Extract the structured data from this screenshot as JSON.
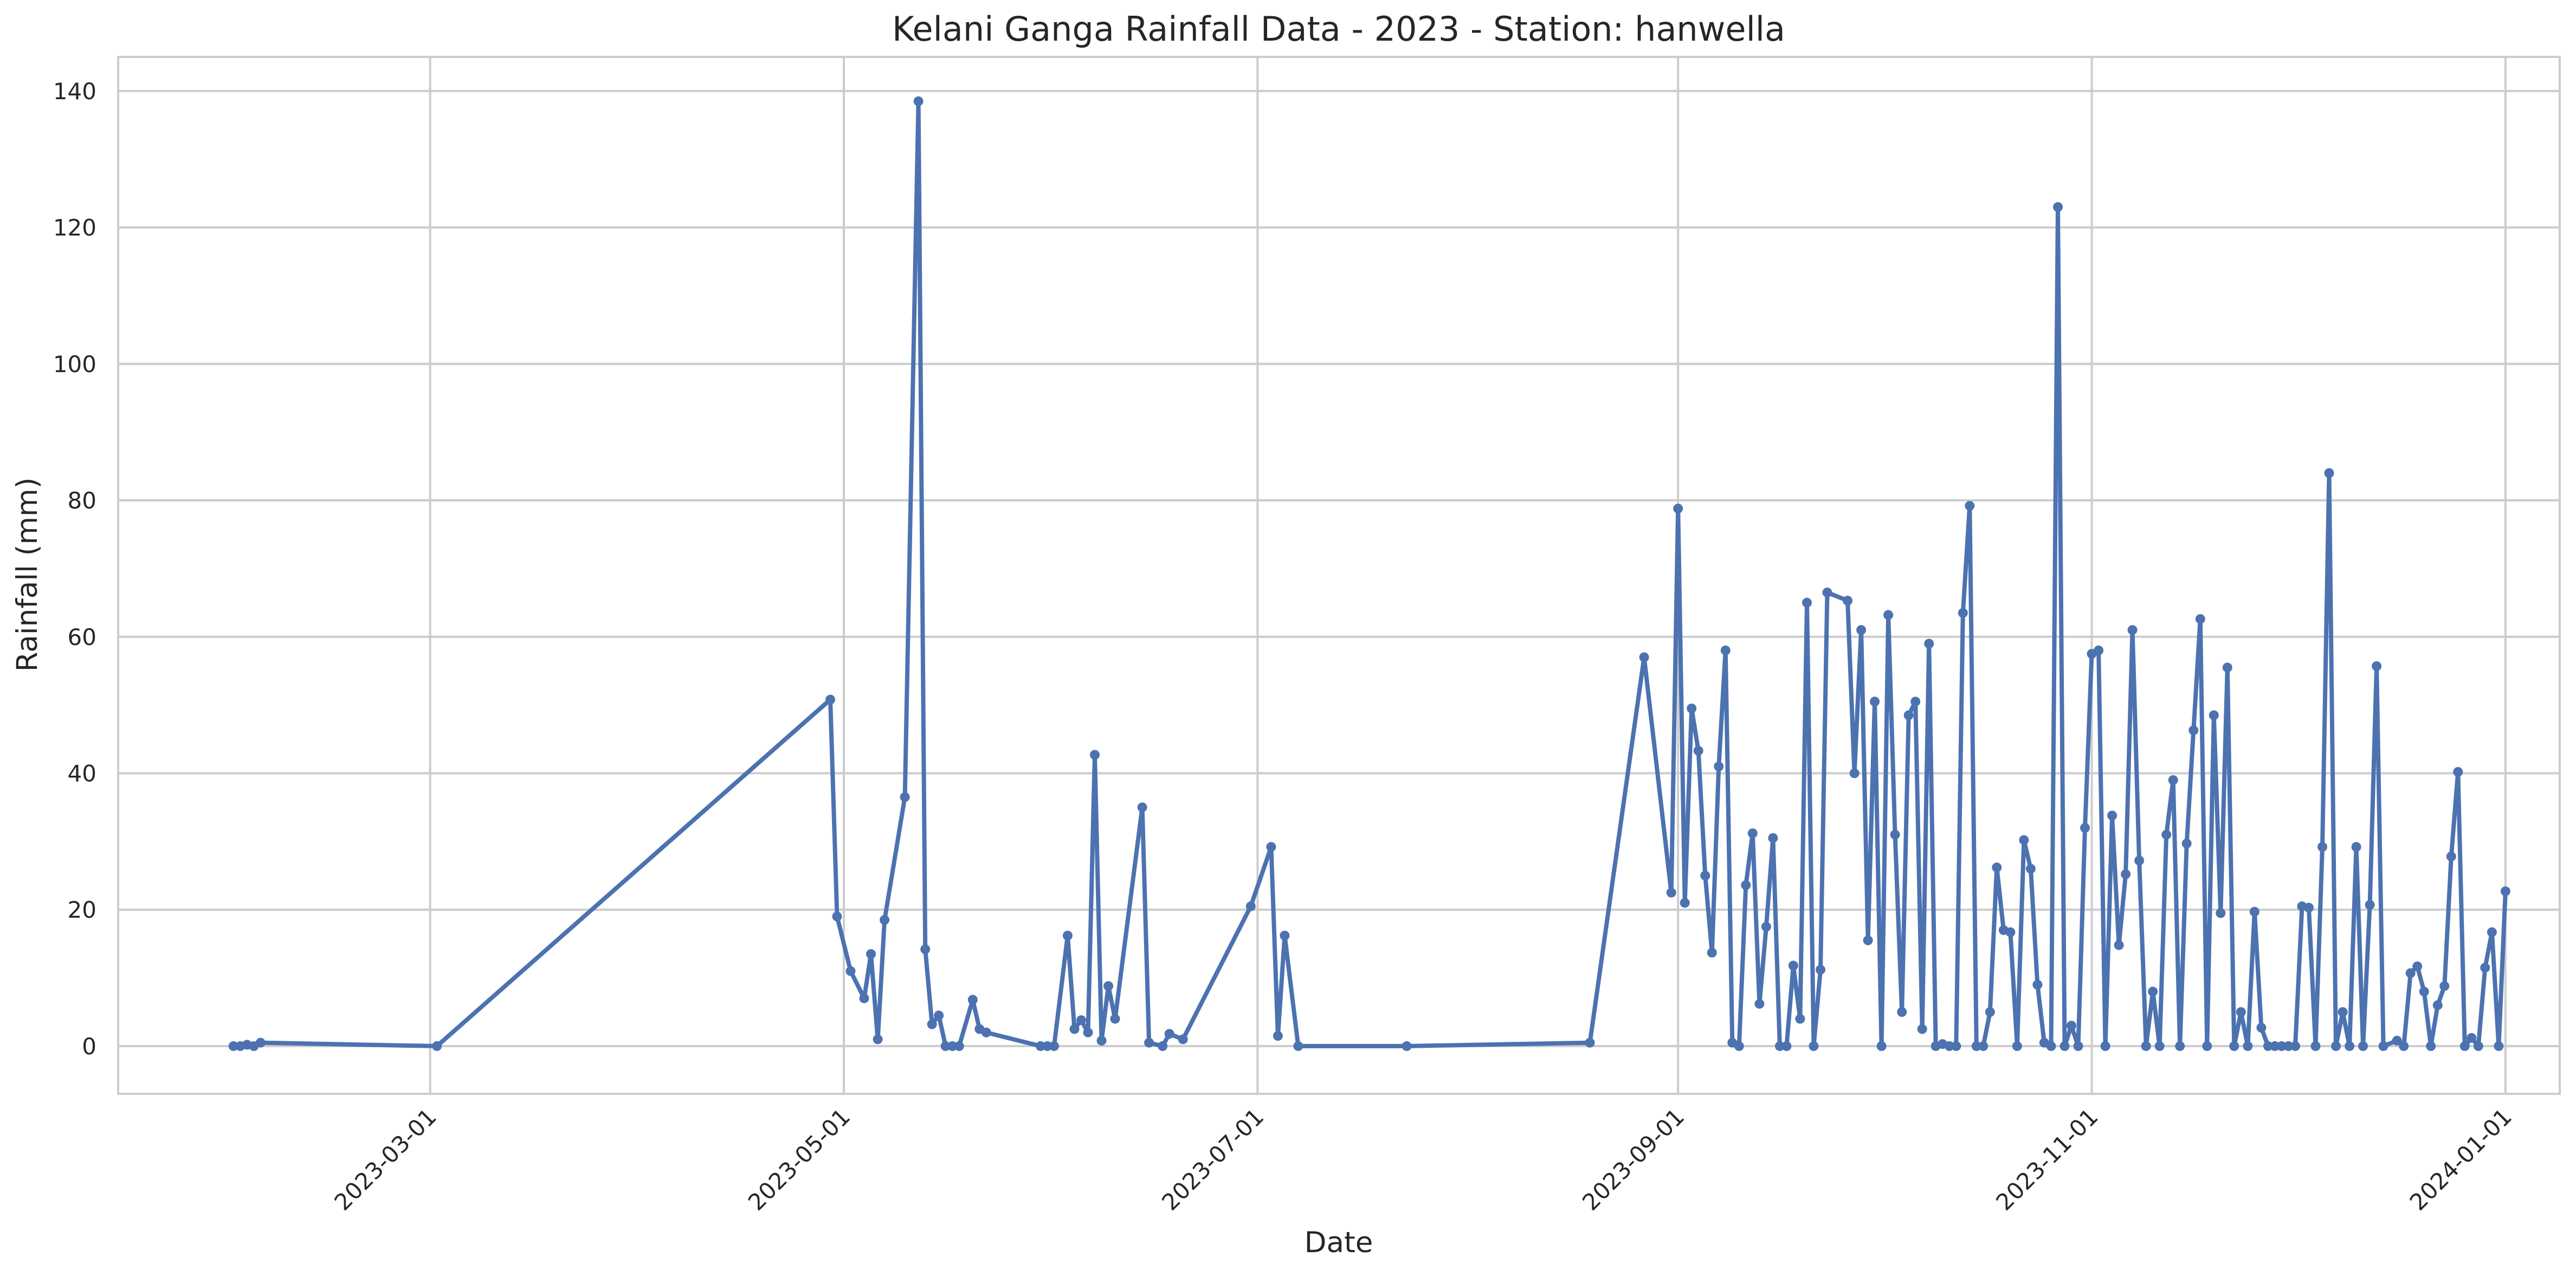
{
  "chart_data": {
    "type": "line",
    "title": "Kelani Ganga Rainfall Data - 2023 - Station: hanwella",
    "xlabel": "Date",
    "ylabel": "Rainfall (mm)",
    "x_axis": {
      "type": "date",
      "range": [
        "2023-01-14",
        "2024-01-09"
      ],
      "ticks": [
        "2023-03-01",
        "2023-05-01",
        "2023-07-01",
        "2023-09-01",
        "2023-11-01",
        "2024-01-01"
      ]
    },
    "y_axis": {
      "range": [
        -7,
        145
      ],
      "ticks": [
        0,
        20,
        40,
        60,
        80,
        100,
        120,
        140
      ],
      "tick_labels": [
        "0",
        "20",
        "40",
        "60",
        "80",
        "100",
        "120",
        "140"
      ]
    },
    "grid": true,
    "legend": "none",
    "colors": {
      "series": "#4c72b0",
      "grid": "#cccccc",
      "background": "#ffffff"
    },
    "series": [
      {
        "points": [
          [
            "2023-01-31",
            0
          ],
          [
            "2023-02-01",
            0
          ],
          [
            "2023-02-02",
            0.2
          ],
          [
            "2023-02-03",
            0
          ],
          [
            "2023-02-04",
            0.5
          ],
          [
            "2023-03-02",
            0
          ],
          [
            "2023-04-29",
            50.8
          ],
          [
            "2023-04-30",
            19
          ],
          [
            "2023-05-02",
            11
          ],
          [
            "2023-05-04",
            7
          ],
          [
            "2023-05-05",
            13.5
          ],
          [
            "2023-05-06",
            1
          ],
          [
            "2023-05-07",
            18.5
          ],
          [
            "2023-05-10",
            36.5
          ],
          [
            "2023-05-12",
            138.5
          ],
          [
            "2023-05-13",
            14.2
          ],
          [
            "2023-05-14",
            3.2
          ],
          [
            "2023-05-15",
            4.5
          ],
          [
            "2023-05-16",
            0
          ],
          [
            "2023-05-17",
            0
          ],
          [
            "2023-05-18",
            0
          ],
          [
            "2023-05-20",
            6.8
          ],
          [
            "2023-05-21",
            2.5
          ],
          [
            "2023-05-22",
            2
          ],
          [
            "2023-05-30",
            0
          ],
          [
            "2023-05-31",
            0
          ],
          [
            "2023-06-01",
            0
          ],
          [
            "2023-06-03",
            16.2
          ],
          [
            "2023-06-04",
            2.5
          ],
          [
            "2023-06-05",
            3.8
          ],
          [
            "2023-06-06",
            2
          ],
          [
            "2023-06-07",
            42.7
          ],
          [
            "2023-06-08",
            0.8
          ],
          [
            "2023-06-09",
            8.8
          ],
          [
            "2023-06-10",
            4
          ],
          [
            "2023-06-14",
            35
          ],
          [
            "2023-06-15",
            0.5
          ],
          [
            "2023-06-17",
            0
          ],
          [
            "2023-06-18",
            1.8
          ],
          [
            "2023-06-20",
            1
          ],
          [
            "2023-06-30",
            20.5
          ],
          [
            "2023-07-03",
            29.2
          ],
          [
            "2023-07-04",
            1.5
          ],
          [
            "2023-07-05",
            16.2
          ],
          [
            "2023-07-07",
            0
          ],
          [
            "2023-07-23",
            0
          ],
          [
            "2023-08-19",
            0.5
          ],
          [
            "2023-08-27",
            57
          ],
          [
            "2023-08-31",
            22.5
          ],
          [
            "2023-09-01",
            78.8
          ],
          [
            "2023-09-02",
            21
          ],
          [
            "2023-09-03",
            49.5
          ],
          [
            "2023-09-04",
            43.3
          ],
          [
            "2023-09-05",
            25
          ],
          [
            "2023-09-06",
            13.7
          ],
          [
            "2023-09-07",
            41
          ],
          [
            "2023-09-08",
            58
          ],
          [
            "2023-09-09",
            0.5
          ],
          [
            "2023-09-10",
            0
          ],
          [
            "2023-09-11",
            23.6
          ],
          [
            "2023-09-12",
            31.2
          ],
          [
            "2023-09-13",
            6.2
          ],
          [
            "2023-09-14",
            17.5
          ],
          [
            "2023-09-15",
            30.5
          ],
          [
            "2023-09-16",
            0
          ],
          [
            "2023-09-17",
            0
          ],
          [
            "2023-09-18",
            11.8
          ],
          [
            "2023-09-19",
            4
          ],
          [
            "2023-09-20",
            65
          ],
          [
            "2023-09-21",
            0
          ],
          [
            "2023-09-22",
            11.2
          ],
          [
            "2023-09-23",
            66.5
          ],
          [
            "2023-09-26",
            65.3
          ],
          [
            "2023-09-27",
            40
          ],
          [
            "2023-09-28",
            61
          ],
          [
            "2023-09-29",
            15.5
          ],
          [
            "2023-09-30",
            50.5
          ],
          [
            "2023-10-01",
            0
          ],
          [
            "2023-10-02",
            63.2
          ],
          [
            "2023-10-03",
            31
          ],
          [
            "2023-10-04",
            5
          ],
          [
            "2023-10-05",
            48.5
          ],
          [
            "2023-10-06",
            50.5
          ],
          [
            "2023-10-07",
            2.5
          ],
          [
            "2023-10-08",
            59
          ],
          [
            "2023-10-09",
            0
          ],
          [
            "2023-10-10",
            0.3
          ],
          [
            "2023-10-11",
            0
          ],
          [
            "2023-10-12",
            0
          ],
          [
            "2023-10-13",
            63.5
          ],
          [
            "2023-10-14",
            79.2
          ],
          [
            "2023-10-15",
            0
          ],
          [
            "2023-10-16",
            0
          ],
          [
            "2023-10-17",
            5
          ],
          [
            "2023-10-18",
            26.2
          ],
          [
            "2023-10-19",
            17
          ],
          [
            "2023-10-20",
            16.7
          ],
          [
            "2023-10-21",
            0
          ],
          [
            "2023-10-22",
            30.2
          ],
          [
            "2023-10-23",
            26
          ],
          [
            "2023-10-24",
            9
          ],
          [
            "2023-10-25",
            0.5
          ],
          [
            "2023-10-26",
            0
          ],
          [
            "2023-10-27",
            123
          ],
          [
            "2023-10-28",
            0
          ],
          [
            "2023-10-29",
            3
          ],
          [
            "2023-10-30",
            0
          ],
          [
            "2023-10-31",
            32
          ],
          [
            "2023-11-01",
            57.5
          ],
          [
            "2023-11-02",
            58
          ],
          [
            "2023-11-03",
            0
          ],
          [
            "2023-11-04",
            33.8
          ],
          [
            "2023-11-05",
            14.8
          ],
          [
            "2023-11-06",
            25.2
          ],
          [
            "2023-11-07",
            61
          ],
          [
            "2023-11-08",
            27.2
          ],
          [
            "2023-11-09",
            0
          ],
          [
            "2023-11-10",
            8
          ],
          [
            "2023-11-11",
            0
          ],
          [
            "2023-11-12",
            31
          ],
          [
            "2023-11-13",
            39
          ],
          [
            "2023-11-14",
            0
          ],
          [
            "2023-11-15",
            29.7
          ],
          [
            "2023-11-16",
            46.3
          ],
          [
            "2023-11-17",
            62.6
          ],
          [
            "2023-11-18",
            0
          ],
          [
            "2023-11-19",
            48.5
          ],
          [
            "2023-11-20",
            19.5
          ],
          [
            "2023-11-21",
            55.5
          ],
          [
            "2023-11-22",
            0
          ],
          [
            "2023-11-23",
            5
          ],
          [
            "2023-11-24",
            0
          ],
          [
            "2023-11-25",
            19.7
          ],
          [
            "2023-11-26",
            2.7
          ],
          [
            "2023-11-27",
            0
          ],
          [
            "2023-11-28",
            0
          ],
          [
            "2023-11-29",
            0
          ],
          [
            "2023-11-30",
            0
          ],
          [
            "2023-12-01",
            0
          ],
          [
            "2023-12-02",
            20.5
          ],
          [
            "2023-12-03",
            20.3
          ],
          [
            "2023-12-04",
            0
          ],
          [
            "2023-12-05",
            29.2
          ],
          [
            "2023-12-06",
            84
          ],
          [
            "2023-12-07",
            0
          ],
          [
            "2023-12-08",
            5
          ],
          [
            "2023-12-09",
            0
          ],
          [
            "2023-12-10",
            29.2
          ],
          [
            "2023-12-11",
            0
          ],
          [
            "2023-12-12",
            20.7
          ],
          [
            "2023-12-13",
            55.7
          ],
          [
            "2023-12-14",
            0
          ],
          [
            "2023-12-16",
            0.8
          ],
          [
            "2023-12-17",
            0
          ],
          [
            "2023-12-18",
            10.7
          ],
          [
            "2023-12-19",
            11.7
          ],
          [
            "2023-12-20",
            8
          ],
          [
            "2023-12-21",
            0
          ],
          [
            "2023-12-22",
            6
          ],
          [
            "2023-12-23",
            8.8
          ],
          [
            "2023-12-24",
            27.8
          ],
          [
            "2023-12-25",
            40.2
          ],
          [
            "2023-12-26",
            0
          ],
          [
            "2023-12-27",
            1.2
          ],
          [
            "2023-12-28",
            0
          ],
          [
            "2023-12-29",
            11.5
          ],
          [
            "2023-12-30",
            16.7
          ],
          [
            "2023-12-31",
            0
          ],
          [
            "2024-01-01",
            22.7
          ]
        ]
      }
    ]
  }
}
